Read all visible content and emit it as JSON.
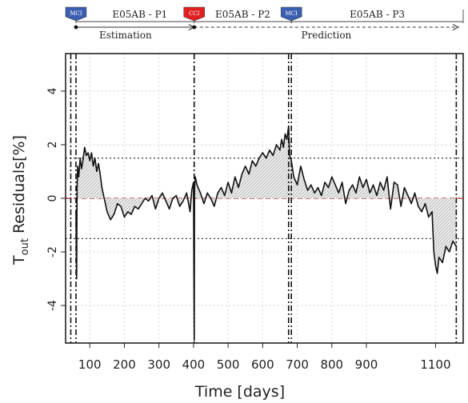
{
  "chart_data": {
    "type": "line",
    "xlabel": "Time [days]",
    "ylabel_main": "T",
    "ylabel_sub": "out",
    "ylabel_rest": " Residuals[%]",
    "xlim": [
      30,
      1180
    ],
    "ylim": [
      -5.4,
      5.4
    ],
    "x_ticks": [
      100,
      200,
      300,
      400,
      500,
      600,
      700,
      800,
      900,
      1100
    ],
    "y_ticks": [
      -4,
      -2,
      0,
      2,
      4
    ],
    "grid": true,
    "zero_line": {
      "y": 0,
      "color": "#cc2222",
      "style": "dashed"
    },
    "threshold_lines": [
      1.5,
      -1.5
    ],
    "event_lines_x": [
      45,
      60,
      402,
      675,
      683,
      1160
    ],
    "phases": [
      {
        "name": "E05AB - P1",
        "x_start": 60,
        "x_end": 402
      },
      {
        "name": "E05AB - P2",
        "x_start": 402,
        "x_end": 683
      },
      {
        "name": "E05AB - P3",
        "x_start": 683,
        "x_end": 1180
      }
    ],
    "badges": [
      {
        "label": "MCI",
        "x": 60,
        "color": "#3a5fb0"
      },
      {
        "label": "CCI",
        "x": 402,
        "color": "#e02020"
      },
      {
        "label": "MCI",
        "x": 683,
        "color": "#3a5fb0"
      }
    ],
    "periods": [
      {
        "name": "Estimation",
        "x_start": 60,
        "x_end": 402,
        "style": "solid"
      },
      {
        "name": "Prediction",
        "x_start": 402,
        "x_end": 1180,
        "style": "dashed"
      }
    ],
    "series": [
      {
        "color": "#111111",
        "x": [
          60,
          62,
          63,
          65,
          68,
          72,
          76,
          80,
          85,
          90,
          95,
          100,
          105,
          110,
          115,
          120,
          125,
          130,
          135,
          140,
          145,
          150,
          160,
          170,
          180,
          190,
          200,
          210,
          220,
          230,
          240,
          250,
          260,
          270,
          280,
          290,
          300,
          310,
          320,
          330,
          340,
          350,
          360,
          370,
          380,
          390,
          395,
          400,
          401,
          402,
          403,
          405,
          410,
          420,
          430,
          440,
          450,
          460,
          470,
          480,
          490,
          500,
          510,
          520,
          530,
          540,
          550,
          560,
          570,
          580,
          590,
          600,
          610,
          620,
          630,
          640,
          650,
          655,
          660,
          665,
          670,
          675,
          678,
          683,
          690,
          700,
          710,
          720,
          730,
          740,
          750,
          760,
          770,
          780,
          790,
          800,
          810,
          820,
          830,
          840,
          850,
          860,
          870,
          880,
          890,
          900,
          910,
          920,
          930,
          940,
          950,
          960,
          970,
          980,
          990,
          1000,
          1010,
          1020,
          1030,
          1040,
          1050,
          1060,
          1070,
          1080,
          1090,
          1095,
          1100,
          1105,
          1110,
          1120,
          1130,
          1140,
          1150,
          1160
        ],
        "y": [
          -0.5,
          -3.0,
          0.3,
          1.2,
          0.8,
          1.5,
          1.1,
          1.4,
          1.9,
          1.6,
          1.7,
          1.4,
          1.7,
          1.2,
          1.5,
          1.0,
          1.3,
          0.9,
          0.4,
          0.1,
          -0.2,
          -0.5,
          -0.8,
          -0.6,
          -0.2,
          -0.3,
          -0.7,
          -0.5,
          -0.6,
          -0.3,
          -0.4,
          -0.2,
          0.0,
          -0.1,
          0.1,
          -0.4,
          0.0,
          0.2,
          -0.1,
          -0.4,
          0.0,
          0.1,
          -0.3,
          -0.1,
          0.2,
          -0.5,
          0.3,
          0.6,
          -2.5,
          -5.3,
          0.4,
          0.8,
          0.5,
          0.2,
          -0.2,
          0.2,
          0.0,
          -0.3,
          0.2,
          0.4,
          0.1,
          0.6,
          0.2,
          0.8,
          0.4,
          0.9,
          1.2,
          0.9,
          1.4,
          1.2,
          1.5,
          1.7,
          1.5,
          1.8,
          1.6,
          2.0,
          1.8,
          2.2,
          1.9,
          2.4,
          2.2,
          2.7,
          1.6,
          1.4,
          0.8,
          0.5,
          1.2,
          0.7,
          0.3,
          0.5,
          0.2,
          0.4,
          0.1,
          0.6,
          0.4,
          0.8,
          0.5,
          0.2,
          0.6,
          -0.2,
          0.3,
          0.5,
          0.2,
          0.8,
          0.4,
          0.7,
          0.2,
          0.5,
          0.1,
          0.6,
          0.3,
          0.8,
          -0.4,
          0.6,
          0.5,
          -0.3,
          0.4,
          0.1,
          -0.2,
          0.2,
          -0.3,
          -0.5,
          -0.2,
          -0.7,
          -0.5,
          -2.0,
          -2.5,
          -2.8,
          -2.2,
          -2.4,
          -1.8,
          -2.0,
          -1.6,
          -1.8
        ]
      }
    ]
  }
}
